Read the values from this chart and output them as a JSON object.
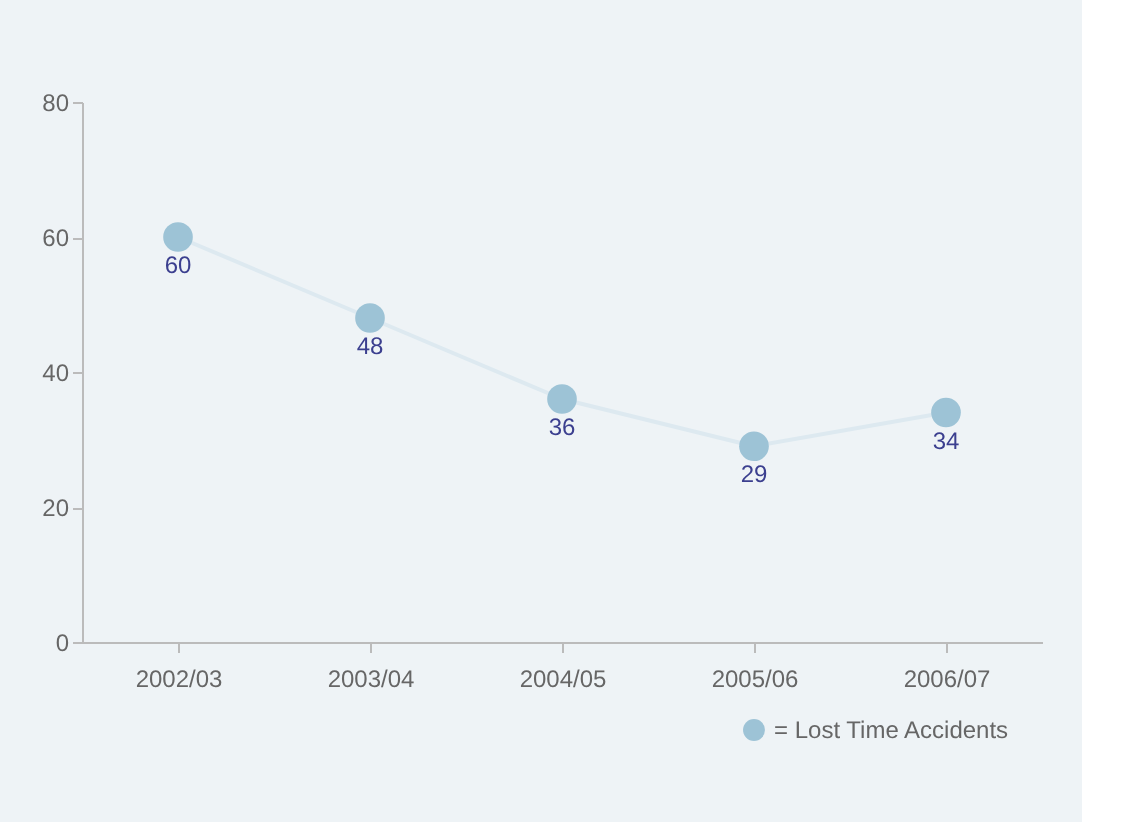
{
  "chart_data": {
    "type": "line",
    "categories": [
      "2002/03",
      "2003/04",
      "2004/05",
      "2005/06",
      "2006/07"
    ],
    "series": [
      {
        "name": "= Lost Time Accidents",
        "color": "#9dc3d6",
        "values": [
          60,
          48,
          36,
          29,
          34
        ]
      }
    ],
    "ylim": [
      0,
      80
    ],
    "yticks": [
      0,
      20,
      40,
      60,
      80
    ],
    "data_labels": true,
    "marker": "circle",
    "line_style": "solid",
    "legend": "bottom right",
    "grid": false
  }
}
